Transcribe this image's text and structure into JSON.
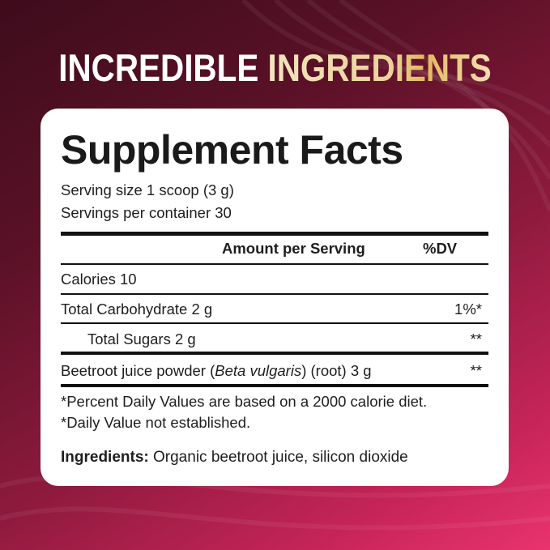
{
  "headline": {
    "part1": "INCREDIBLE",
    "part2": "INGREDIENTS"
  },
  "facts": {
    "title": "Supplement Facts",
    "serving_size": "Serving size 1 scoop (3 g)",
    "servings_per_container": "Servings per container 30",
    "header_amount": "Amount per Serving",
    "header_dv": "%DV",
    "rows": [
      {
        "label": "Calories 10",
        "dv": ""
      },
      {
        "label": "Total Carbohydrate 2 g",
        "dv": "1%*"
      },
      {
        "label": "Total Sugars 2 g",
        "dv": "**"
      },
      {
        "label_pre": "Beetroot juice powder (",
        "label_italic": "Beta vulgaris",
        "label_post": ") (root) 3 g",
        "dv": "**"
      }
    ],
    "footnote1": "*Percent Daily Values are based on a 2000 calorie diet.",
    "footnote2": "*Daily Value not established.",
    "ingredients_label": "Ingredients:",
    "ingredients_text": " Organic beetroot juice, silicon dioxide"
  },
  "colors": {
    "bg_dark": "#3e0c1c",
    "bg_light": "#e9336e",
    "gold": "#e6c06a"
  }
}
